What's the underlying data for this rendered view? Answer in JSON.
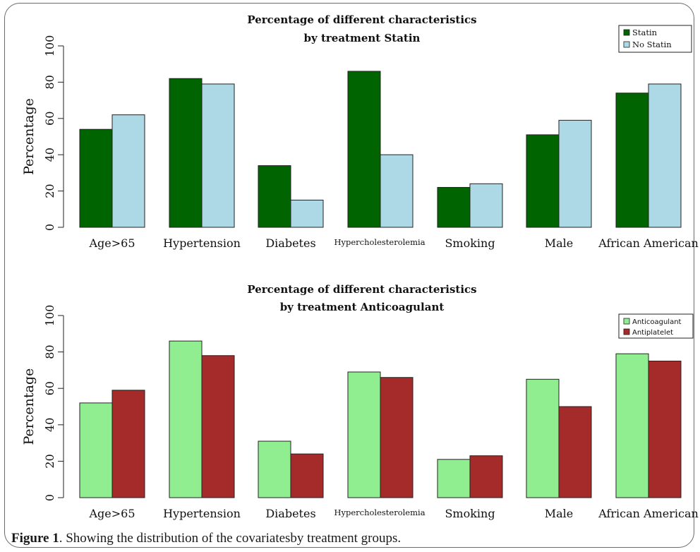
{
  "caption": {
    "label": "Figure 1",
    "text": ". Showing the distribution of the covariatesby treatment groups."
  },
  "chart_data": [
    {
      "type": "bar",
      "title_lines": [
        "Percentage of different characteristics",
        "by treatment Statin"
      ],
      "xlabel": "",
      "ylabel": "Percentage",
      "ylim": [
        0,
        100
      ],
      "yticks": [
        0,
        20,
        40,
        60,
        80,
        100
      ],
      "grid": false,
      "legend_position": "top-right",
      "categories": [
        "Age>65",
        "Hypertension",
        "Diabetes",
        "Hypercholesterolemia",
        "Smoking",
        "Male",
        "African American"
      ],
      "series": [
        {
          "name": "Statin",
          "color": "#006400",
          "values": [
            54,
            82,
            34,
            86,
            22,
            51,
            74
          ]
        },
        {
          "name": "No Statin",
          "color": "#add8e6",
          "values": [
            62,
            79,
            15,
            40,
            24,
            59,
            79
          ]
        }
      ]
    },
    {
      "type": "bar",
      "title_lines": [
        "Percentage of different characteristics",
        "by treatment Anticoagulant"
      ],
      "xlabel": "",
      "ylabel": "Percentage",
      "ylim": [
        0,
        100
      ],
      "yticks": [
        0,
        20,
        40,
        60,
        80,
        100
      ],
      "grid": false,
      "legend_position": "top-right",
      "categories": [
        "Age>65",
        "Hypertension",
        "Diabetes",
        "Hypercholesterolemia",
        "Smoking",
        "Male",
        "African American"
      ],
      "series": [
        {
          "name": "Anticoagulant",
          "color": "#90ee90",
          "values": [
            52,
            86,
            31,
            69,
            21,
            65,
            79
          ]
        },
        {
          "name": "Antiplatelet",
          "color": "#a52a2a",
          "values": [
            59,
            78,
            24,
            66,
            23,
            50,
            75
          ]
        }
      ]
    }
  ]
}
